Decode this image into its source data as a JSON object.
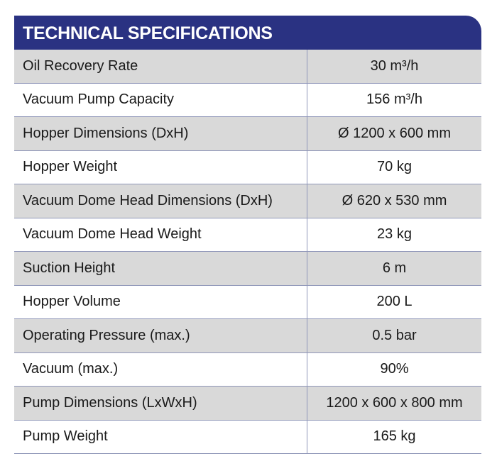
{
  "header": {
    "title": "TECHNICAL SPECIFICATIONS"
  },
  "table": {
    "rows": [
      [
        "Oil Recovery Rate",
        "30 m³/h"
      ],
      [
        "Vacuum Pump Capacity",
        "156 m³/h"
      ],
      [
        "Hopper Dimensions (DxH)",
        "Ø 1200 x 600 mm"
      ],
      [
        "Hopper Weight",
        "70 kg"
      ],
      [
        "Vacuum Dome Head Dimensions (DxH)",
        "Ø 620 x 530 mm"
      ],
      [
        "Vacuum Dome Head Weight",
        "23 kg"
      ],
      [
        "Suction Height",
        "6 m"
      ],
      [
        "Hopper Volume",
        "200 L"
      ],
      [
        "Operating Pressure (max.)",
        "0.5 bar"
      ],
      [
        "Vacuum (max.)",
        "90%"
      ],
      [
        "Pump Dimensions (LxWxH)",
        "1200 x 600 x 800 mm"
      ],
      [
        "Pump Weight",
        "165 kg"
      ]
    ]
  }
}
